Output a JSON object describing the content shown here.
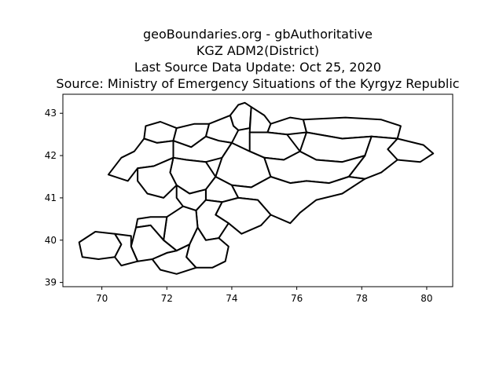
{
  "title_lines": [
    "geoBoundaries.org - gbAuthoritative",
    "KGZ ADM2(District)",
    "Last Source Data Update: Oct 25, 2020",
    "Source: Ministry of Emergency Situations of the Kyrgyz Republic"
  ],
  "chart_data": {
    "type": "map",
    "xlim": [
      68.8,
      80.8
    ],
    "ylim": [
      38.9,
      43.45
    ],
    "xticks": [
      70,
      72,
      74,
      76,
      78,
      80
    ],
    "yticks": [
      39,
      40,
      41,
      42,
      43
    ],
    "line_color": "#000000",
    "fill_color": "#ffffff",
    "districts": [
      {
        "ring": [
          [
            74.2,
            43.2
          ],
          [
            74.4,
            43.25
          ],
          [
            74.6,
            43.15
          ],
          [
            74.55,
            42.65
          ],
          [
            74.2,
            42.6
          ],
          [
            74.05,
            42.7
          ],
          [
            73.95,
            42.95
          ],
          [
            74.2,
            43.2
          ]
        ]
      },
      {
        "ring": [
          [
            74.6,
            43.15
          ],
          [
            75.0,
            42.95
          ],
          [
            75.2,
            42.75
          ],
          [
            75.1,
            42.55
          ],
          [
            74.55,
            42.55
          ],
          [
            74.6,
            43.15
          ]
        ]
      },
      {
        "ring": [
          [
            75.2,
            42.75
          ],
          [
            75.8,
            42.9
          ],
          [
            76.2,
            42.85
          ],
          [
            76.3,
            42.55
          ],
          [
            75.7,
            42.5
          ],
          [
            75.1,
            42.55
          ],
          [
            75.2,
            42.75
          ]
        ]
      },
      {
        "ring": [
          [
            73.3,
            42.75
          ],
          [
            73.95,
            42.95
          ],
          [
            74.05,
            42.7
          ],
          [
            74.2,
            42.6
          ],
          [
            74.0,
            42.3
          ],
          [
            73.6,
            42.35
          ],
          [
            73.2,
            42.45
          ],
          [
            73.3,
            42.75
          ]
        ]
      },
      {
        "ring": [
          [
            71.35,
            42.7
          ],
          [
            71.8,
            42.8
          ],
          [
            72.3,
            42.65
          ],
          [
            72.2,
            42.35
          ],
          [
            71.7,
            42.3
          ],
          [
            71.3,
            42.4
          ],
          [
            71.35,
            42.7
          ]
        ]
      },
      {
        "ring": [
          [
            72.3,
            42.65
          ],
          [
            72.85,
            42.75
          ],
          [
            73.3,
            42.75
          ],
          [
            73.2,
            42.45
          ],
          [
            72.75,
            42.2
          ],
          [
            72.2,
            42.35
          ],
          [
            72.3,
            42.65
          ]
        ]
      },
      {
        "ring": [
          [
            76.2,
            42.85
          ],
          [
            77.5,
            42.9
          ],
          [
            78.6,
            42.85
          ],
          [
            79.2,
            42.7
          ],
          [
            79.1,
            42.4
          ],
          [
            78.3,
            42.45
          ],
          [
            77.4,
            42.4
          ],
          [
            76.3,
            42.55
          ],
          [
            76.2,
            42.85
          ]
        ]
      },
      {
        "ring": [
          [
            79.1,
            42.4
          ],
          [
            79.9,
            42.25
          ],
          [
            80.2,
            42.05
          ],
          [
            79.8,
            41.85
          ],
          [
            79.1,
            41.9
          ],
          [
            78.8,
            42.15
          ],
          [
            79.1,
            42.4
          ]
        ]
      },
      {
        "ring": [
          [
            76.3,
            42.55
          ],
          [
            77.4,
            42.4
          ],
          [
            78.3,
            42.45
          ],
          [
            78.1,
            42.0
          ],
          [
            77.4,
            41.85
          ],
          [
            76.6,
            41.9
          ],
          [
            76.1,
            42.1
          ],
          [
            76.3,
            42.55
          ]
        ]
      },
      {
        "ring": [
          [
            78.3,
            42.45
          ],
          [
            79.1,
            42.4
          ],
          [
            78.8,
            42.15
          ],
          [
            79.1,
            41.9
          ],
          [
            78.6,
            41.6
          ],
          [
            78.1,
            41.45
          ],
          [
            77.6,
            41.5
          ],
          [
            78.1,
            42.0
          ],
          [
            78.3,
            42.45
          ]
        ]
      },
      {
        "ring": [
          [
            74.55,
            42.55
          ],
          [
            75.1,
            42.55
          ],
          [
            75.7,
            42.5
          ],
          [
            76.1,
            42.1
          ],
          [
            75.6,
            41.9
          ],
          [
            75.0,
            41.95
          ],
          [
            74.55,
            42.1
          ],
          [
            74.55,
            42.55
          ]
        ]
      },
      {
        "ring": [
          [
            72.2,
            42.35
          ],
          [
            72.75,
            42.2
          ],
          [
            73.2,
            42.45
          ],
          [
            73.6,
            42.35
          ],
          [
            74.0,
            42.3
          ],
          [
            73.7,
            41.95
          ],
          [
            73.2,
            41.85
          ],
          [
            72.6,
            41.9
          ],
          [
            72.2,
            41.95
          ],
          [
            72.2,
            42.35
          ]
        ]
      },
      {
        "ring": [
          [
            70.2,
            41.55
          ],
          [
            70.6,
            41.95
          ],
          [
            71.0,
            42.1
          ],
          [
            71.3,
            42.4
          ],
          [
            71.7,
            42.3
          ],
          [
            72.2,
            42.35
          ],
          [
            72.2,
            41.95
          ],
          [
            71.6,
            41.75
          ],
          [
            71.1,
            41.7
          ],
          [
            70.8,
            41.4
          ],
          [
            70.2,
            41.55
          ]
        ]
      },
      {
        "ring": [
          [
            74.0,
            42.3
          ],
          [
            74.55,
            42.1
          ],
          [
            75.0,
            41.95
          ],
          [
            75.2,
            41.5
          ],
          [
            74.6,
            41.25
          ],
          [
            74.0,
            41.3
          ],
          [
            73.5,
            41.5
          ],
          [
            73.7,
            41.95
          ],
          [
            74.0,
            42.3
          ]
        ]
      },
      {
        "ring": [
          [
            75.0,
            41.95
          ],
          [
            75.6,
            41.9
          ],
          [
            76.1,
            42.1
          ],
          [
            76.6,
            41.9
          ],
          [
            77.4,
            41.85
          ],
          [
            78.1,
            42.0
          ],
          [
            77.6,
            41.5
          ],
          [
            77.0,
            41.35
          ],
          [
            76.3,
            41.4
          ],
          [
            75.8,
            41.35
          ],
          [
            75.2,
            41.5
          ],
          [
            75.0,
            41.95
          ]
        ]
      },
      {
        "ring": [
          [
            72.2,
            41.95
          ],
          [
            72.6,
            41.9
          ],
          [
            73.2,
            41.85
          ],
          [
            73.5,
            41.5
          ],
          [
            73.2,
            41.2
          ],
          [
            72.7,
            41.1
          ],
          [
            72.3,
            41.3
          ],
          [
            72.1,
            41.6
          ],
          [
            72.2,
            41.95
          ]
        ]
      },
      {
        "ring": [
          [
            71.1,
            41.7
          ],
          [
            71.6,
            41.75
          ],
          [
            72.2,
            41.95
          ],
          [
            72.1,
            41.6
          ],
          [
            72.3,
            41.3
          ],
          [
            71.9,
            41.0
          ],
          [
            71.4,
            41.1
          ],
          [
            71.1,
            41.4
          ],
          [
            71.1,
            41.7
          ]
        ]
      },
      {
        "ring": [
          [
            74.0,
            41.3
          ],
          [
            74.6,
            41.25
          ],
          [
            75.2,
            41.5
          ],
          [
            75.8,
            41.35
          ],
          [
            76.3,
            41.4
          ],
          [
            77.0,
            41.35
          ],
          [
            77.6,
            41.5
          ],
          [
            78.1,
            41.45
          ],
          [
            77.4,
            41.1
          ],
          [
            76.6,
            40.95
          ],
          [
            76.1,
            40.65
          ],
          [
            75.8,
            40.4
          ],
          [
            75.2,
            40.6
          ],
          [
            74.8,
            40.95
          ],
          [
            74.2,
            41.0
          ],
          [
            74.0,
            41.3
          ]
        ]
      },
      {
        "ring": [
          [
            73.2,
            41.2
          ],
          [
            73.5,
            41.5
          ],
          [
            74.0,
            41.3
          ],
          [
            74.2,
            41.0
          ],
          [
            73.7,
            40.9
          ],
          [
            73.2,
            40.95
          ],
          [
            73.2,
            41.2
          ]
        ]
      },
      {
        "ring": [
          [
            72.3,
            41.3
          ],
          [
            72.7,
            41.1
          ],
          [
            73.2,
            41.2
          ],
          [
            73.2,
            40.95
          ],
          [
            72.9,
            40.7
          ],
          [
            72.5,
            40.8
          ],
          [
            72.3,
            41.0
          ],
          [
            72.3,
            41.3
          ]
        ]
      },
      {
        "ring": [
          [
            73.7,
            40.9
          ],
          [
            74.2,
            41.0
          ],
          [
            74.8,
            40.95
          ],
          [
            75.2,
            40.6
          ],
          [
            74.9,
            40.35
          ],
          [
            74.3,
            40.15
          ],
          [
            73.9,
            40.4
          ],
          [
            73.5,
            40.6
          ],
          [
            73.7,
            40.9
          ]
        ]
      },
      {
        "ring": [
          [
            72.9,
            40.7
          ],
          [
            73.2,
            40.95
          ],
          [
            73.7,
            40.9
          ],
          [
            73.5,
            40.6
          ],
          [
            73.9,
            40.4
          ],
          [
            73.6,
            40.05
          ],
          [
            73.2,
            40.0
          ],
          [
            72.95,
            40.3
          ],
          [
            72.9,
            40.7
          ]
        ]
      },
      {
        "ring": [
          [
            72.0,
            40.55
          ],
          [
            72.5,
            40.8
          ],
          [
            72.9,
            40.7
          ],
          [
            72.95,
            40.3
          ],
          [
            72.7,
            39.9
          ],
          [
            72.3,
            39.75
          ],
          [
            71.9,
            40.0
          ],
          [
            72.0,
            40.55
          ]
        ]
      },
      {
        "ring": [
          [
            72.95,
            40.3
          ],
          [
            73.2,
            40.0
          ],
          [
            73.6,
            40.05
          ],
          [
            73.9,
            39.85
          ],
          [
            73.8,
            39.5
          ],
          [
            73.4,
            39.35
          ],
          [
            72.9,
            39.35
          ],
          [
            72.6,
            39.6
          ],
          [
            72.7,
            39.9
          ],
          [
            72.95,
            40.3
          ]
        ]
      },
      {
        "ring": [
          [
            72.3,
            39.75
          ],
          [
            72.7,
            39.9
          ],
          [
            72.6,
            39.6
          ],
          [
            72.9,
            39.35
          ],
          [
            72.3,
            39.2
          ],
          [
            71.8,
            39.3
          ],
          [
            71.55,
            39.55
          ],
          [
            72.0,
            39.7
          ],
          [
            72.3,
            39.75
          ]
        ]
      },
      {
        "ring": [
          [
            71.05,
            40.3
          ],
          [
            71.5,
            40.35
          ],
          [
            71.9,
            40.0
          ],
          [
            72.0,
            40.55
          ],
          [
            71.5,
            40.55
          ],
          [
            71.1,
            40.5
          ],
          [
            71.05,
            40.3
          ]
        ]
      },
      {
        "ring": [
          [
            70.9,
            39.85
          ],
          [
            71.05,
            40.3
          ],
          [
            71.5,
            40.35
          ],
          [
            71.9,
            40.0
          ],
          [
            72.3,
            39.75
          ],
          [
            72.0,
            39.7
          ],
          [
            71.55,
            39.55
          ],
          [
            71.1,
            39.5
          ],
          [
            70.9,
            39.85
          ]
        ]
      },
      {
        "ring": [
          [
            69.3,
            39.95
          ],
          [
            69.8,
            40.2
          ],
          [
            70.4,
            40.15
          ],
          [
            70.6,
            39.9
          ],
          [
            70.4,
            39.6
          ],
          [
            69.9,
            39.55
          ],
          [
            69.4,
            39.6
          ],
          [
            69.3,
            39.95
          ]
        ]
      },
      {
        "ring": [
          [
            70.4,
            40.15
          ],
          [
            70.9,
            40.1
          ],
          [
            70.9,
            39.85
          ],
          [
            71.1,
            39.5
          ],
          [
            70.6,
            39.4
          ],
          [
            70.4,
            39.6
          ],
          [
            70.6,
            39.9
          ],
          [
            70.4,
            40.15
          ]
        ]
      }
    ]
  }
}
